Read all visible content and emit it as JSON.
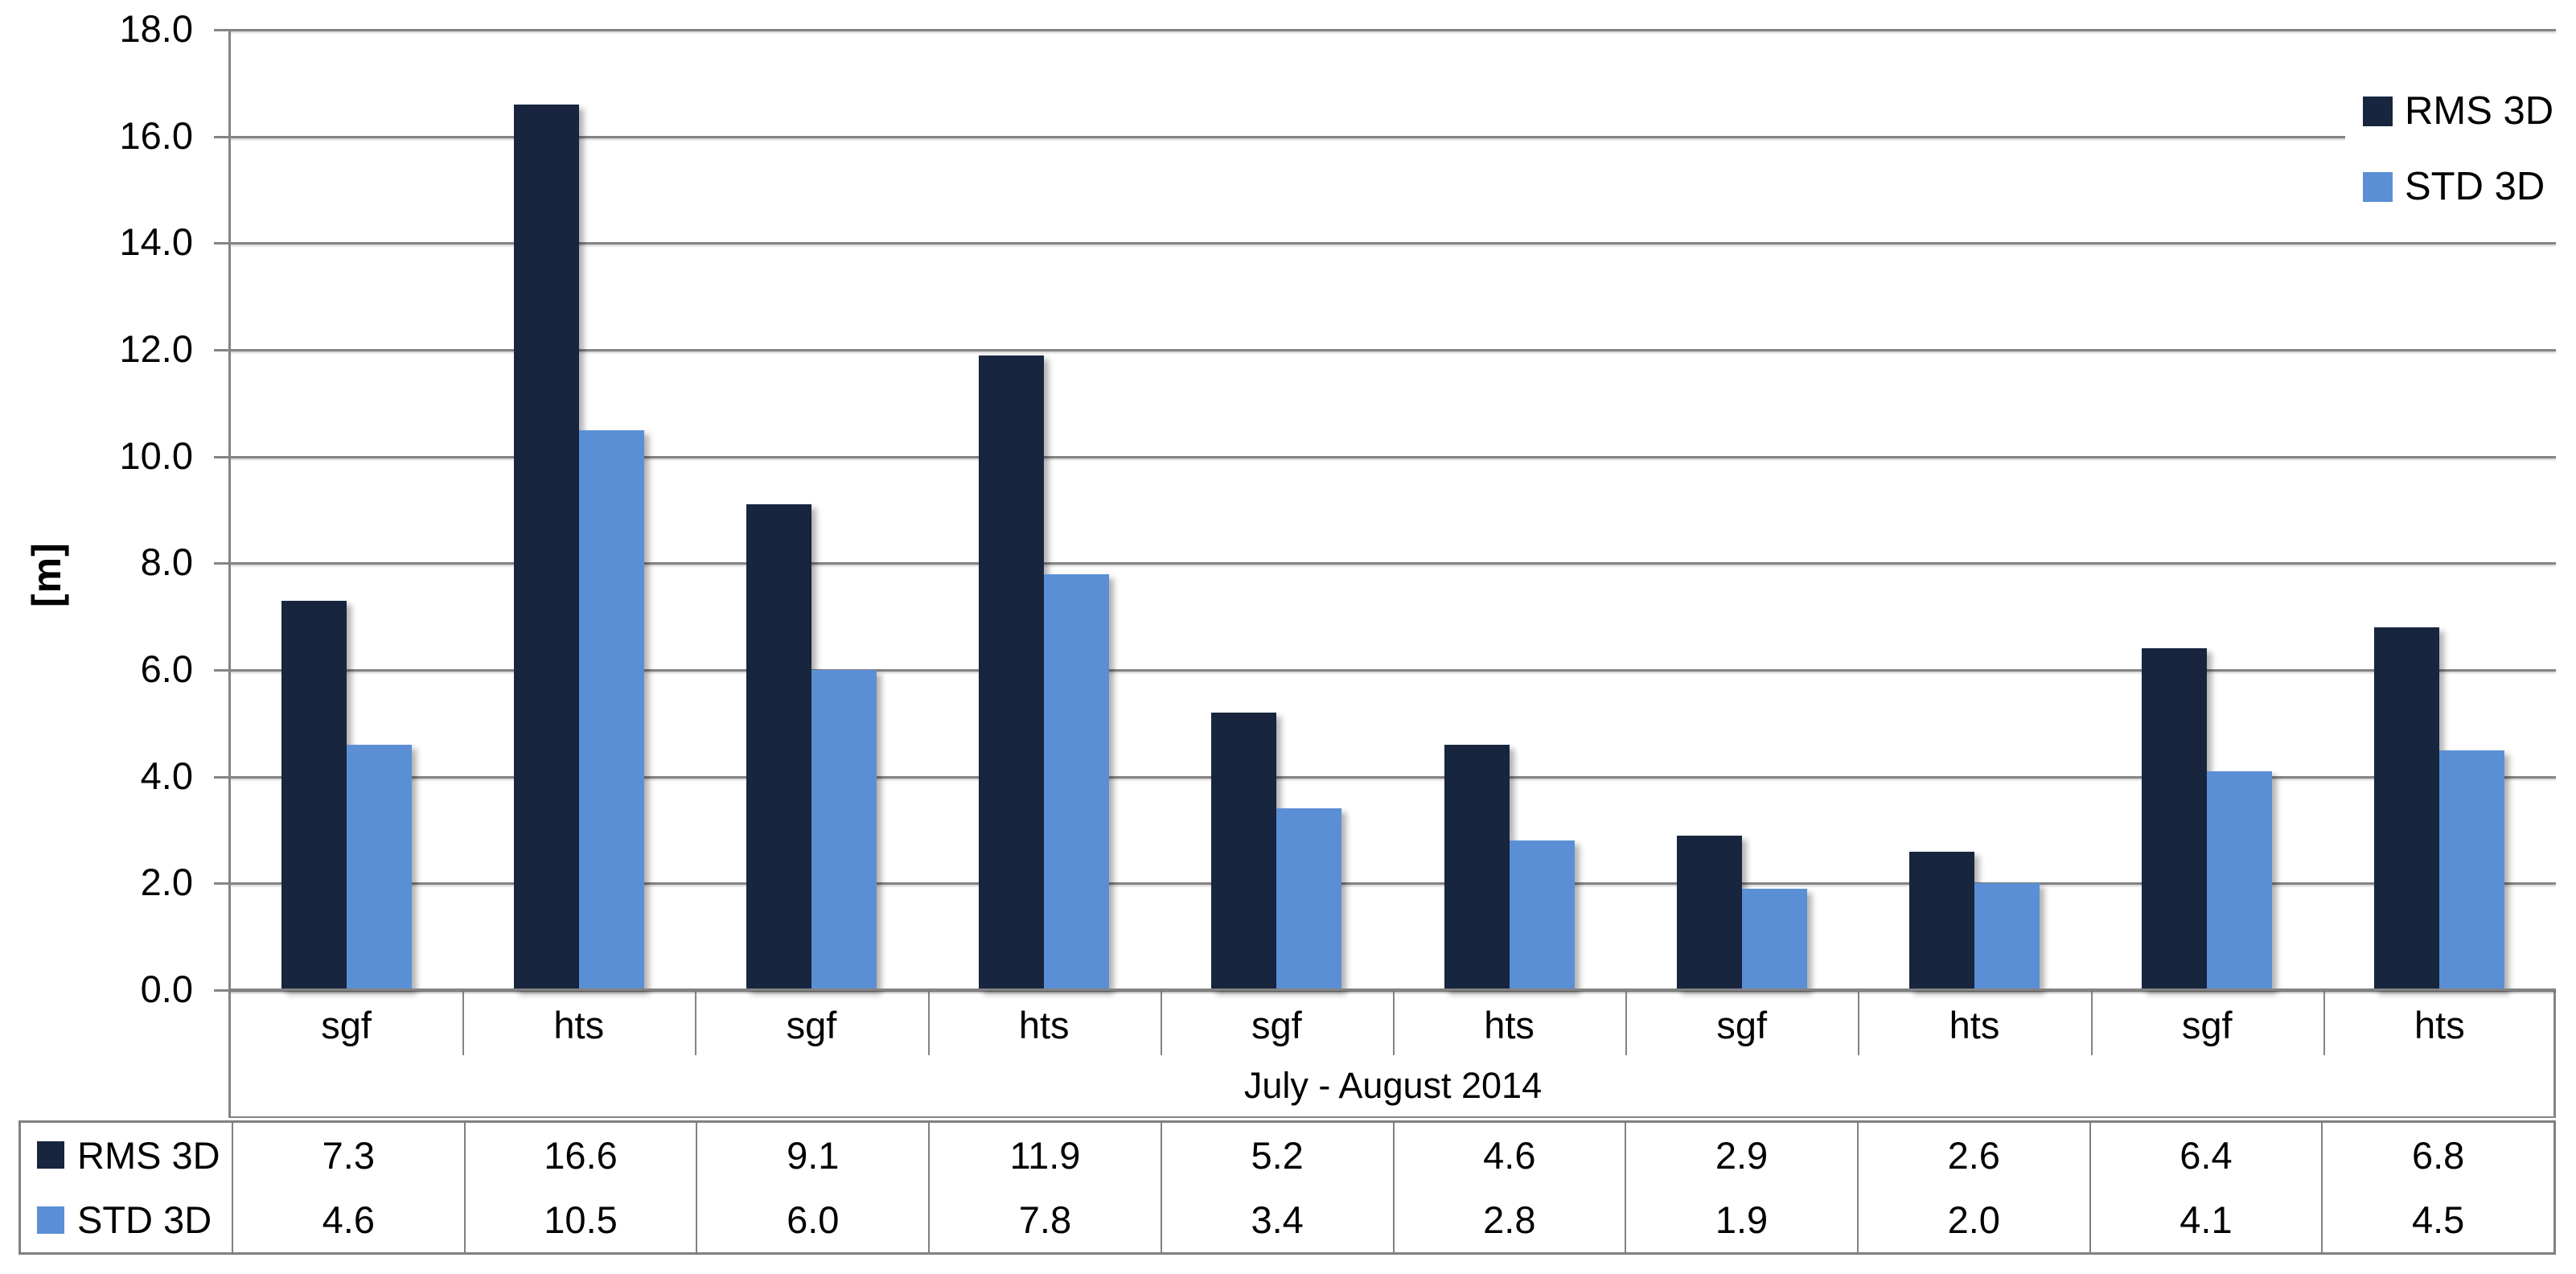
{
  "chart_data": {
    "type": "bar",
    "title": "",
    "y_axis_title": "[m]",
    "x_axis_title": "July - August 2014",
    "categories": [
      "sgf",
      "hts",
      "sgf",
      "hts",
      "sgf",
      "hts",
      "sgf",
      "hts",
      "sgf",
      "hts"
    ],
    "series": [
      {
        "name": "RMS 3D",
        "color": "#17253E",
        "values": [
          7.3,
          16.6,
          9.1,
          11.9,
          5.2,
          4.6,
          2.9,
          2.6,
          6.4,
          6.8
        ]
      },
      {
        "name": "STD 3D",
        "color": "#5B8FD5",
        "values": [
          4.6,
          10.5,
          6.0,
          7.8,
          3.4,
          2.8,
          1.9,
          2.0,
          4.1,
          4.5
        ]
      }
    ],
    "y_ticks": [
      "18.0",
      "16.0",
      "14.0",
      "12.0",
      "10.0",
      "8.0",
      "6.0",
      "4.0",
      "2.0",
      "0.0"
    ],
    "ylim": [
      0,
      18
    ],
    "grid": true,
    "legend_position": "top-right",
    "data_table": true,
    "value_decimals": 1
  },
  "style_colors": {
    "gridline": "#848484",
    "axis_line": "#848484",
    "table_border": "#808080",
    "text": "#000000",
    "background": "#FFFFFF"
  }
}
